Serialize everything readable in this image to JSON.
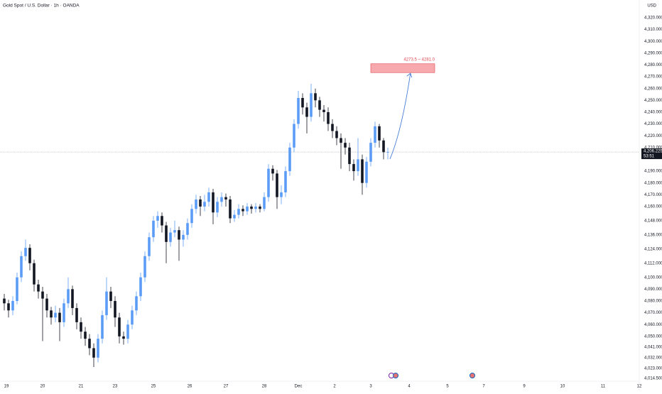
{
  "chart_data": {
    "type": "candlestick",
    "title": "Gold Spot / U.S. Dollar · 1h · OANDA",
    "currency": "USD",
    "up_color": "#5b9cf6",
    "down_color": "#131722",
    "grid": false,
    "xlim": [
      0,
      150
    ],
    "ylim": [
      4012,
      4335
    ],
    "xticks": [
      {
        "value": 1.5,
        "label": "19"
      },
      {
        "value": 10,
        "label": "20"
      },
      {
        "value": 19,
        "label": "21"
      },
      {
        "value": 27,
        "label": "23"
      },
      {
        "value": 36,
        "label": "25"
      },
      {
        "value": 44.5,
        "label": "26"
      },
      {
        "value": 53,
        "label": "27"
      },
      {
        "value": 62,
        "label": "28"
      },
      {
        "value": 70,
        "label": "Dec"
      },
      {
        "value": 78.5,
        "label": "2"
      },
      {
        "value": 87,
        "label": "3"
      },
      {
        "value": 96,
        "label": "4"
      },
      {
        "value": 105,
        "label": "5"
      },
      {
        "value": 113.5,
        "label": "7"
      },
      {
        "value": 123,
        "label": "9"
      },
      {
        "value": 132,
        "label": "10"
      },
      {
        "value": 141.5,
        "label": "11"
      },
      {
        "value": 150,
        "label": "12"
      }
    ],
    "yticks": [
      {
        "value": 4320,
        "label": "4,320.000"
      },
      {
        "value": 4310,
        "label": "4,310.000"
      },
      {
        "value": 4300,
        "label": "4,300.000"
      },
      {
        "value": 4290,
        "label": "4,290.000"
      },
      {
        "value": 4280,
        "label": "4,280.000"
      },
      {
        "value": 4270,
        "label": "4,270.000"
      },
      {
        "value": 4260,
        "label": "4,260.000"
      },
      {
        "value": 4250,
        "label": "4,250.000"
      },
      {
        "value": 4240,
        "label": "4,240.000"
      },
      {
        "value": 4230,
        "label": "4,230.000"
      },
      {
        "value": 4220,
        "label": "4,220.000"
      },
      {
        "value": 4210,
        "label": "4,210.000"
      },
      {
        "value": 4190,
        "label": "4,190.000"
      },
      {
        "value": 4180,
        "label": "4,180.000"
      },
      {
        "value": 4170,
        "label": "4,170.000"
      },
      {
        "value": 4160,
        "label": "4,160.000"
      },
      {
        "value": 4148,
        "label": "4,148.000"
      },
      {
        "value": 4136,
        "label": "4,136.000"
      },
      {
        "value": 4124,
        "label": "4,124.000"
      },
      {
        "value": 4112,
        "label": "4,112.000"
      },
      {
        "value": 4100,
        "label": "4,100.000"
      },
      {
        "value": 4090,
        "label": "4,090.000"
      },
      {
        "value": 4080,
        "label": "4,080.000"
      },
      {
        "value": 4070,
        "label": "4,070.000"
      },
      {
        "value": 4060,
        "label": "4,060.000"
      },
      {
        "value": 4050,
        "label": "4,050.000"
      },
      {
        "value": 4041,
        "label": "4,041.000"
      },
      {
        "value": 4032,
        "label": "4,032.000"
      },
      {
        "value": 4023,
        "label": "4,023.000"
      },
      {
        "value": 4014.5,
        "label": "4,014.500"
      }
    ],
    "x": [
      1,
      2,
      3,
      4,
      5,
      6,
      7,
      8,
      9,
      10,
      11,
      12,
      13,
      14,
      15,
      16,
      17,
      18,
      19,
      20,
      21,
      22,
      23,
      24,
      25,
      26,
      27,
      28,
      29,
      30,
      31,
      32,
      33,
      34,
      35,
      36,
      37,
      38,
      39,
      40,
      41,
      42,
      43,
      44,
      45,
      46,
      47,
      48,
      49,
      50,
      51,
      52,
      53,
      54,
      55,
      56,
      57,
      58,
      59,
      60,
      61,
      62,
      63,
      64,
      65,
      66,
      67,
      68,
      69,
      70,
      71,
      72,
      73,
      74,
      75,
      76,
      77,
      78,
      79,
      80,
      81,
      82,
      83,
      84,
      85,
      86,
      87,
      88,
      89,
      90,
      91
    ],
    "candles": [
      [
        4082,
        4086,
        4072,
        4078
      ],
      [
        4078,
        4081,
        4066,
        4072
      ],
      [
        4072,
        4084,
        4068,
        4080
      ],
      [
        4080,
        4104,
        4077,
        4100
      ],
      [
        4100,
        4122,
        4096,
        4118
      ],
      [
        4118,
        4132,
        4114,
        4125
      ],
      [
        4125,
        4128,
        4106,
        4112
      ],
      [
        4112,
        4115,
        4088,
        4094
      ],
      [
        4094,
        4098,
        4082,
        4088
      ],
      [
        4088,
        4092,
        4046,
        4082
      ],
      [
        4082,
        4086,
        4066,
        4072
      ],
      [
        4072,
        4075,
        4060,
        4066
      ],
      [
        4066,
        4076,
        4062,
        4070
      ],
      [
        4070,
        4074,
        4046,
        4062
      ],
      [
        4062,
        4082,
        4058,
        4078
      ],
      [
        4078,
        4100,
        4074,
        4090
      ],
      [
        4090,
        4093,
        4068,
        4074
      ],
      [
        4074,
        4078,
        4056,
        4062
      ],
      [
        4062,
        4066,
        4048,
        4054
      ],
      [
        4054,
        4058,
        4042,
        4048
      ],
      [
        4048,
        4052,
        4034,
        4040
      ],
      [
        4040,
        4044,
        4024,
        4032
      ],
      [
        4032,
        4052,
        4028,
        4048
      ],
      [
        4048,
        4072,
        4044,
        4068
      ],
      [
        4068,
        4100,
        4064,
        4088
      ],
      [
        4088,
        4092,
        4074,
        4080
      ],
      [
        4080,
        4084,
        4058,
        4066
      ],
      [
        4066,
        4070,
        4044,
        4050
      ],
      [
        4050,
        4054,
        4043,
        4048
      ],
      [
        4048,
        4064,
        4044,
        4060
      ],
      [
        4060,
        4076,
        4056,
        4072
      ],
      [
        4072,
        4088,
        4068,
        4084
      ],
      [
        4084,
        4104,
        4080,
        4100
      ],
      [
        4100,
        4122,
        4096,
        4118
      ],
      [
        4118,
        4138,
        4114,
        4134
      ],
      [
        4134,
        4152,
        4130,
        4148
      ],
      [
        4148,
        4156,
        4142,
        4152
      ],
      [
        4152,
        4155,
        4138,
        4144
      ],
      [
        4144,
        4147,
        4112,
        4130
      ],
      [
        4130,
        4142,
        4126,
        4138
      ],
      [
        4138,
        4148,
        4134,
        4140
      ],
      [
        4140,
        4143,
        4114,
        4132
      ],
      [
        4132,
        4140,
        4126,
        4136
      ],
      [
        4136,
        4150,
        4132,
        4146
      ],
      [
        4146,
        4162,
        4142,
        4158
      ],
      [
        4158,
        4170,
        4154,
        4166
      ],
      [
        4166,
        4169,
        4152,
        4160
      ],
      [
        4160,
        4170,
        4156,
        4164
      ],
      [
        4164,
        4176,
        4160,
        4172
      ],
      [
        4172,
        4175,
        4145,
        4155
      ],
      [
        4155,
        4168,
        4151,
        4164
      ],
      [
        4164,
        4172,
        4160,
        4168
      ],
      [
        4168,
        4171,
        4160,
        4166
      ],
      [
        4166,
        4169,
        4146,
        4150
      ],
      [
        4150,
        4157,
        4147,
        4153
      ],
      [
        4153,
        4162,
        4150,
        4158
      ],
      [
        4158,
        4161,
        4152,
        4156
      ],
      [
        4156,
        4163,
        4153,
        4160
      ],
      [
        4160,
        4162,
        4154,
        4158
      ],
      [
        4158,
        4163,
        4155,
        4160
      ],
      [
        4160,
        4162,
        4155,
        4158
      ],
      [
        4158,
        4172,
        4156,
        4168
      ],
      [
        4168,
        4196,
        4164,
        4192
      ],
      [
        4192,
        4195,
        4182,
        4188
      ],
      [
        4188,
        4191,
        4158,
        4168
      ],
      [
        4168,
        4178,
        4162,
        4172
      ],
      [
        4172,
        4194,
        4168,
        4190
      ],
      [
        4190,
        4214,
        4186,
        4210
      ],
      [
        4210,
        4234,
        4206,
        4230
      ],
      [
        4230,
        4258,
        4226,
        4252
      ],
      [
        4252,
        4256,
        4238,
        4244
      ],
      [
        4244,
        4248,
        4222,
        4236
      ],
      [
        4236,
        4264,
        4232,
        4256
      ],
      [
        4256,
        4260,
        4244,
        4250
      ],
      [
        4250,
        4253,
        4236,
        4242
      ],
      [
        4242,
        4246,
        4232,
        4240
      ],
      [
        4240,
        4244,
        4224,
        4230
      ],
      [
        4230,
        4234,
        4218,
        4224
      ],
      [
        4224,
        4228,
        4212,
        4218
      ],
      [
        4218,
        4222,
        4192,
        4214
      ],
      [
        4214,
        4218,
        4204,
        4210
      ],
      [
        4210,
        4214,
        4190,
        4196
      ],
      [
        4196,
        4200,
        4182,
        4190
      ],
      [
        4190,
        4218,
        4186,
        4200
      ],
      [
        4200,
        4204,
        4170,
        4180
      ],
      [
        4180,
        4202,
        4176,
        4198
      ],
      [
        4198,
        4218,
        4194,
        4214
      ],
      [
        4214,
        4232,
        4210,
        4228
      ],
      [
        4228,
        4230,
        4210,
        4216
      ],
      [
        4216,
        4218,
        4200,
        4206
      ],
      [
        4206,
        4210,
        4200,
        4206.225
      ]
    ],
    "price_label": "4,206.225",
    "countdown": "53:51",
    "zone": {
      "low": 4273.5,
      "high": 4281.0,
      "label": "4273.5 ~ 4281.0",
      "x": [
        87,
        102
      ]
    }
  }
}
